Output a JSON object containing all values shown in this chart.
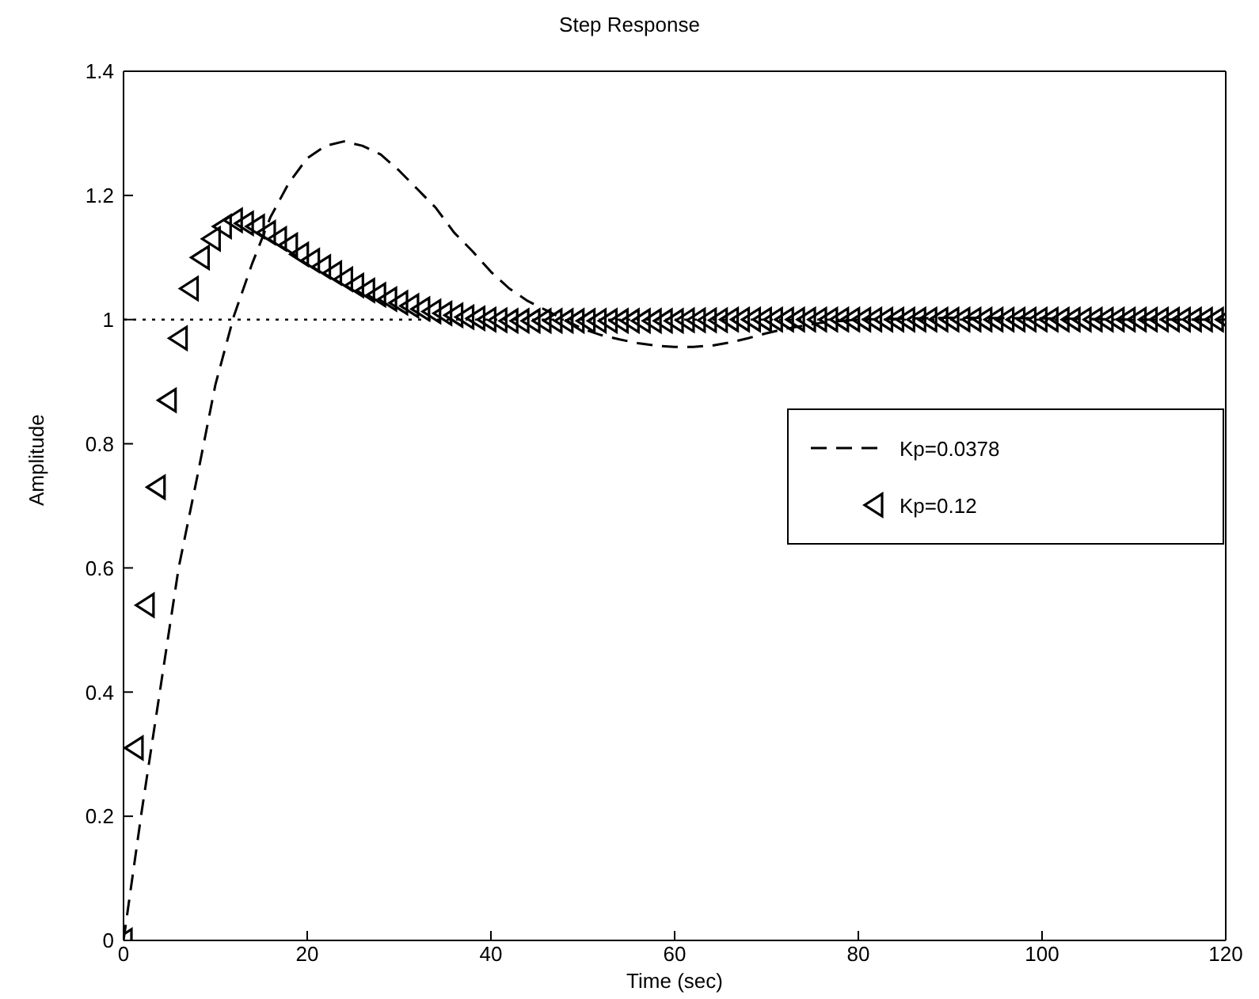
{
  "chart_data": {
    "type": "line",
    "title": "Step Response",
    "xlabel": "Time (sec)",
    "ylabel": "Amplitude",
    "xlim": [
      0,
      120
    ],
    "xticks": [
      0,
      20,
      40,
      60,
      80,
      100,
      120
    ],
    "ylim": [
      0,
      1.4
    ],
    "yticks": [
      0,
      0.2,
      0.4,
      0.6,
      0.8,
      1,
      1.2,
      1.4
    ],
    "grid": false,
    "legend": "right",
    "ref_lines": [
      {
        "axis": "y",
        "value": 1,
        "line_style": "dotted",
        "color": "#000000"
      }
    ],
    "series": [
      {
        "name": "Kp=0.0378",
        "type": "line",
        "line_style": "dashed",
        "marker": "none",
        "color": "#000000",
        "x": [
          0,
          2,
          4,
          6,
          8,
          10,
          12,
          14,
          16,
          18,
          20,
          22,
          24,
          26,
          28,
          30,
          32,
          34,
          36,
          38,
          40,
          42,
          44,
          46,
          48,
          50,
          52,
          54,
          56,
          58,
          60,
          62,
          64,
          66,
          68,
          70,
          72,
          76,
          80,
          90,
          100,
          110,
          120
        ],
        "values": [
          0,
          0.21,
          0.405,
          0.6,
          0.745,
          0.895,
          1.005,
          1.09,
          1.165,
          1.22,
          1.26,
          1.28,
          1.287,
          1.28,
          1.266,
          1.24,
          1.21,
          1.18,
          1.14,
          1.11,
          1.077,
          1.05,
          1.03,
          1.015,
          1,
          0.985,
          0.975,
          0.968,
          0.962,
          0.958,
          0.956,
          0.956,
          0.958,
          0.963,
          0.97,
          0.978,
          0.985,
          0.995,
          1,
          1.003,
          1.002,
          1,
          1
        ]
      },
      {
        "name": "Kp=0.12",
        "type": "scatter",
        "marker": "triangle",
        "color": "#000000",
        "x": [
          0,
          1.2,
          2.4,
          3.6,
          4.8,
          6,
          7.2,
          8.4,
          9.6,
          10.8,
          12,
          13.2,
          14.4,
          15.6,
          16.8,
          18,
          19.2,
          20.4,
          21.6,
          22.8,
          24,
          25.2,
          26.4,
          27.6,
          28.8,
          30,
          31.2,
          32.4,
          33.6,
          34.8,
          36,
          37.2,
          38.4,
          39.6,
          40.8,
          42,
          43.2,
          44.4,
          45.6,
          46.8,
          48,
          49.2,
          50.4,
          51.6,
          52.8,
          54,
          55.2,
          56.4,
          57.6,
          58.8,
          60,
          61.2,
          62.4,
          63.6,
          64.8,
          66,
          67.2,
          68.4,
          69.6,
          70.8,
          72,
          73.2,
          74.4,
          75.6,
          76.8,
          78,
          79.2,
          80.4,
          81.6,
          82.8,
          84,
          85.2,
          86.4,
          87.6,
          88.8,
          90,
          91.2,
          92.4,
          93.6,
          94.8,
          96,
          97.2,
          98.4,
          99.6,
          100.8,
          102,
          103.2,
          104.4,
          105.6,
          106.8,
          108,
          109.2,
          110.4,
          111.6,
          112.8,
          114,
          115.2,
          116.4,
          117.6,
          118.8,
          120
        ],
        "values": [
          0,
          0.31,
          0.54,
          0.73,
          0.87,
          0.97,
          1.05,
          1.1,
          1.13,
          1.15,
          1.16,
          1.155,
          1.15,
          1.14,
          1.13,
          1.12,
          1.105,
          1.095,
          1.085,
          1.075,
          1.065,
          1.055,
          1.047,
          1.04,
          1.033,
          1.027,
          1.022,
          1.017,
          1.013,
          1.01,
          1.007,
          1.004,
          1.002,
          1,
          0.999,
          0.998,
          0.998,
          0.998,
          0.998,
          0.998,
          0.998,
          0.998,
          0.998,
          0.998,
          0.998,
          0.998,
          0.998,
          0.998,
          0.998,
          0.998,
          0.998,
          0.999,
          0.999,
          0.999,
          0.999,
          1,
          1,
          1,
          1,
          1,
          1,
          1,
          1,
          1,
          1,
          1,
          1,
          1,
          1,
          1,
          1,
          1,
          1,
          1,
          1,
          1,
          1,
          1,
          1,
          1,
          1,
          1,
          1,
          1,
          1,
          1,
          1,
          1,
          1,
          1,
          1,
          1,
          1,
          1,
          1,
          1,
          1,
          1,
          1,
          1,
          1
        ]
      }
    ]
  }
}
